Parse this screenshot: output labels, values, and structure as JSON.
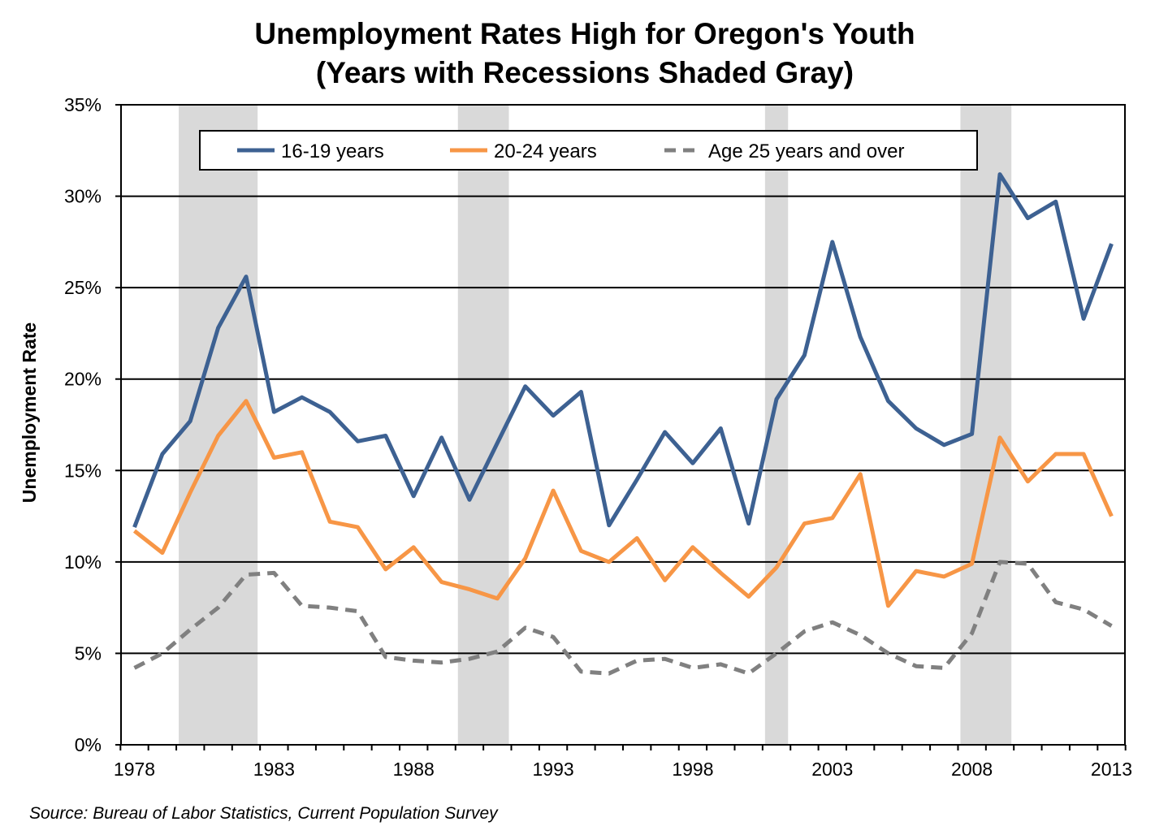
{
  "chart_data": {
    "type": "line",
    "title_lines": [
      "Unemployment Rates High for Oregon's Youth",
      "(Years with Recessions Shaded Gray)"
    ],
    "ylabel": "Unemployment Rate",
    "xlabel": "",
    "source": "Source: Bureau of Labor Statistics, Current Population Survey",
    "ylim": [
      0,
      35
    ],
    "y_ticks": [
      "0%",
      "5%",
      "10%",
      "15%",
      "20%",
      "25%",
      "30%",
      "35%"
    ],
    "x_ticks": [
      "1978",
      "1983",
      "1988",
      "1993",
      "1998",
      "2003",
      "2008",
      "2013"
    ],
    "grid": "horizontal",
    "legend_position": "top-center",
    "recession_years": [
      [
        1980,
        1982
      ],
      [
        1990,
        1991
      ],
      [
        2001,
        2001
      ],
      [
        2008,
        2009
      ]
    ],
    "x": [
      1978,
      1979,
      1980,
      1981,
      1982,
      1983,
      1984,
      1985,
      1986,
      1987,
      1988,
      1989,
      1990,
      1991,
      1992,
      1993,
      1994,
      1995,
      1996,
      1997,
      1998,
      1999,
      2000,
      2001,
      2002,
      2003,
      2004,
      2005,
      2006,
      2007,
      2008,
      2009,
      2010,
      2011,
      2012,
      2013
    ],
    "series": [
      {
        "name": "16-19 years",
        "color": "#3D6192",
        "style": "solid",
        "values": [
          11.9,
          15.9,
          17.7,
          22.8,
          25.6,
          18.2,
          19.0,
          18.2,
          16.6,
          16.9,
          13.6,
          16.8,
          13.4,
          16.5,
          19.6,
          18.0,
          19.3,
          12.0,
          14.5,
          17.1,
          15.4,
          17.3,
          12.1,
          18.9,
          21.3,
          27.5,
          22.3,
          18.8,
          17.3,
          16.4,
          17.0,
          31.2,
          28.8,
          29.7,
          23.3,
          27.4
        ]
      },
      {
        "name": "20-24 years",
        "color": "#F79646",
        "style": "solid",
        "values": [
          11.7,
          10.5,
          13.8,
          16.9,
          18.8,
          15.7,
          16.0,
          12.2,
          11.9,
          9.6,
          10.8,
          8.9,
          8.5,
          8.0,
          10.2,
          13.9,
          10.6,
          10.0,
          11.3,
          9.0,
          10.8,
          9.4,
          8.1,
          9.7,
          12.1,
          12.4,
          14.8,
          7.6,
          9.5,
          9.2,
          9.9,
          16.8,
          14.4,
          15.9,
          15.9,
          12.5
        ]
      },
      {
        "name": "Age 25 years and over",
        "color": "#808080",
        "style": "dashed",
        "values": [
          4.2,
          5.0,
          6.3,
          7.5,
          9.3,
          9.4,
          7.6,
          7.5,
          7.3,
          4.8,
          4.6,
          4.5,
          4.7,
          5.1,
          6.4,
          5.9,
          4.0,
          3.9,
          4.6,
          4.7,
          4.2,
          4.4,
          3.9,
          5.0,
          6.2,
          6.7,
          6.0,
          5.0,
          4.3,
          4.2,
          6.1,
          10.0,
          9.9,
          7.8,
          7.4,
          6.5
        ]
      }
    ]
  }
}
